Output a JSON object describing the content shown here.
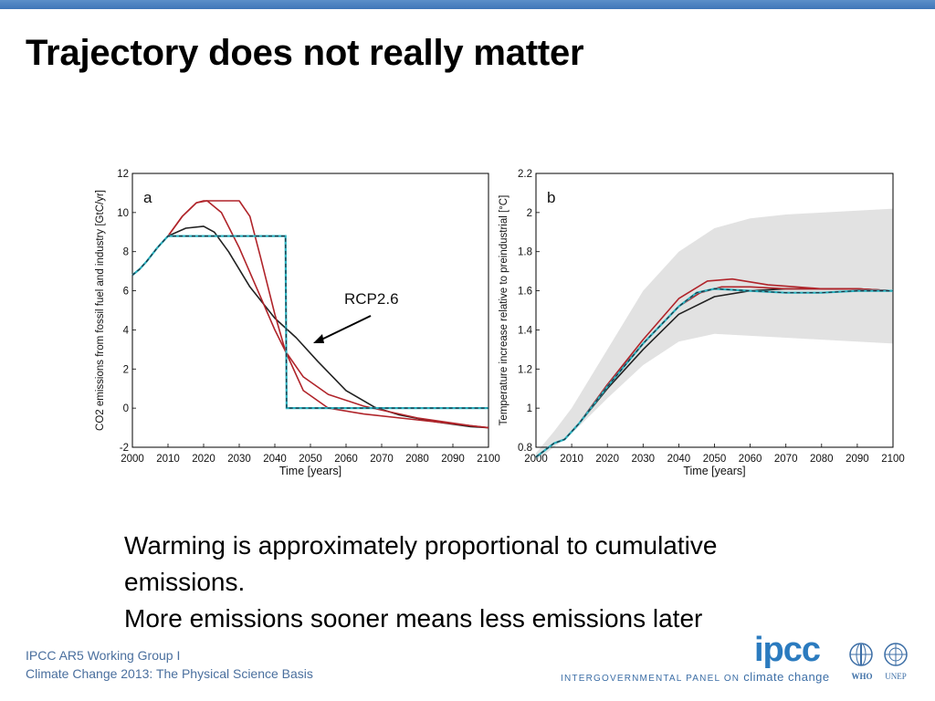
{
  "slide": {
    "title": "Trajectory does not really matter",
    "caption_line1": " Warming is approximately proportional to cumulative emissions.",
    "caption_line2": "More emissions sooner means less emissions later",
    "footer_line1": "IPCC AR5 Working Group I",
    "footer_line2": "Climate Change 2013: The Physical Science Basis",
    "logo_text": "ipcc",
    "logo_tagline_a": "INTERGOVERNMENTAL PANEL ON ",
    "logo_tagline_b": "climate change",
    "who_label": "WHO",
    "unep_label": "UNEP"
  },
  "colors": {
    "accent_bar": "#4a84c4",
    "dark_red": "#b0242a",
    "black_curve": "#222222",
    "dashed_blue": "#2a8fc9",
    "dashed_blue_alt": "#2bb3c0",
    "envelope": "#e2e2e2"
  },
  "chart_data": [
    {
      "type": "line",
      "panel_label": "a",
      "xlabel": "Time [years]",
      "ylabel": "CO2 emissions from fossil fuel and industry [GtC/yr]",
      "xlim": [
        2000,
        2100
      ],
      "ylim": [
        -2,
        12
      ],
      "xticks": [
        2000,
        2010,
        2020,
        2030,
        2040,
        2050,
        2060,
        2070,
        2080,
        2090,
        2100
      ],
      "yticks": [
        -2,
        0,
        2,
        4,
        6,
        8,
        10,
        12
      ],
      "annotation": "RCP2.6",
      "series": [
        {
          "style": "dark",
          "x": [
            2000,
            2002,
            2004,
            2007,
            2010,
            2015,
            2020,
            2023,
            2027,
            2033,
            2040,
            2046,
            2052,
            2060,
            2068,
            2075,
            2085,
            2095,
            2100
          ],
          "y": [
            6.8,
            7.1,
            7.5,
            8.2,
            8.8,
            9.2,
            9.3,
            9.0,
            8.0,
            6.2,
            4.6,
            3.6,
            2.4,
            0.9,
            0.05,
            -0.35,
            -0.7,
            -0.95,
            -1.0
          ]
        },
        {
          "style": "red",
          "x": [
            2000,
            2002,
            2004,
            2007,
            2010,
            2014,
            2018,
            2021,
            2025,
            2030,
            2035,
            2040,
            2043,
            2048,
            2055,
            2065,
            2080,
            2095,
            2100
          ],
          "y": [
            6.8,
            7.1,
            7.5,
            8.2,
            8.8,
            9.8,
            10.5,
            10.6,
            10.0,
            8.2,
            6.1,
            4.0,
            2.9,
            1.6,
            0.7,
            0.1,
            -0.5,
            -0.9,
            -1.0
          ]
        },
        {
          "style": "red",
          "x": [
            2000,
            2002,
            2004,
            2007,
            2010,
            2014,
            2018,
            2020,
            2025,
            2030,
            2033,
            2036,
            2040,
            2043,
            2048,
            2055,
            2065,
            2080,
            2095,
            2100
          ],
          "y": [
            6.8,
            7.1,
            7.5,
            8.2,
            8.8,
            9.8,
            10.5,
            10.6,
            10.6,
            10.6,
            9.8,
            7.7,
            4.8,
            2.9,
            0.9,
            0.0,
            -0.3,
            -0.6,
            -0.9,
            -1.0
          ]
        },
        {
          "style": "dashed",
          "x": [
            2000,
            2002,
            2004,
            2007,
            2010,
            2030,
            2040,
            2043,
            2043.3,
            2100
          ],
          "y": [
            6.8,
            7.1,
            7.5,
            8.2,
            8.8,
            8.8,
            8.8,
            8.8,
            0.0,
            0.0
          ]
        }
      ]
    },
    {
      "type": "line",
      "panel_label": "b",
      "xlabel": "Time [years]",
      "ylabel": "Temperature increase relative to preindustrial [°C]",
      "xlim": [
        2000,
        2100
      ],
      "ylim": [
        0.8,
        2.2
      ],
      "xticks": [
        2000,
        2010,
        2020,
        2030,
        2040,
        2050,
        2060,
        2070,
        2080,
        2090,
        2100
      ],
      "yticks": [
        0.8,
        1,
        1.2,
        1.4,
        1.6,
        1.8,
        2,
        2.2
      ],
      "envelope": {
        "x": [
          2000,
          2005,
          2010,
          2020,
          2030,
          2040,
          2050,
          2060,
          2070,
          2080,
          2090,
          2100
        ],
        "upper": [
          0.77,
          0.88,
          1.0,
          1.3,
          1.6,
          1.8,
          1.92,
          1.97,
          1.99,
          2.0,
          2.01,
          2.02
        ],
        "lower": [
          0.73,
          0.8,
          0.87,
          1.05,
          1.22,
          1.34,
          1.38,
          1.37,
          1.36,
          1.35,
          1.34,
          1.33
        ]
      },
      "series": [
        {
          "style": "dark",
          "x": [
            2000,
            2005,
            2008,
            2012,
            2020,
            2030,
            2040,
            2050,
            2060,
            2070,
            2080,
            2090,
            2100
          ],
          "y": [
            0.75,
            0.82,
            0.84,
            0.92,
            1.1,
            1.3,
            1.48,
            1.57,
            1.6,
            1.61,
            1.61,
            1.61,
            1.6
          ]
        },
        {
          "style": "red",
          "x": [
            2000,
            2005,
            2008,
            2012,
            2020,
            2030,
            2040,
            2048,
            2055,
            2065,
            2080,
            2090,
            2100
          ],
          "y": [
            0.75,
            0.82,
            0.84,
            0.92,
            1.12,
            1.35,
            1.56,
            1.65,
            1.66,
            1.63,
            1.61,
            1.61,
            1.6
          ]
        },
        {
          "style": "red",
          "x": [
            2000,
            2005,
            2008,
            2012,
            2020,
            2030,
            2040,
            2046,
            2052,
            2060,
            2070,
            2080,
            2090,
            2100
          ],
          "y": [
            0.75,
            0.82,
            0.84,
            0.92,
            1.12,
            1.33,
            1.52,
            1.59,
            1.62,
            1.62,
            1.61,
            1.61,
            1.61,
            1.6
          ]
        },
        {
          "style": "dashed",
          "x": [
            2000,
            2005,
            2008,
            2012,
            2020,
            2030,
            2040,
            2045,
            2050,
            2060,
            2070,
            2080,
            2090,
            2100
          ],
          "y": [
            0.75,
            0.82,
            0.84,
            0.92,
            1.11,
            1.33,
            1.52,
            1.59,
            1.61,
            1.6,
            1.59,
            1.59,
            1.6,
            1.6
          ]
        }
      ]
    }
  ]
}
